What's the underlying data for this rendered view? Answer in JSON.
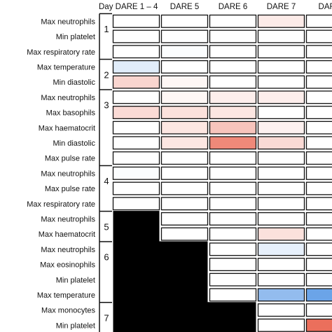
{
  "chart_data": {
    "type": "heatmap",
    "columns": [
      "Day DARE 1 – 4",
      "DARE 5",
      "DARE 6",
      "DARE 7",
      "DARE"
    ],
    "rows": [
      {
        "label": "Max neutrophils",
        "group": "1",
        "values": [
          0.0,
          0.0,
          0.0,
          0.12,
          null
        ]
      },
      {
        "label": "Min platelet",
        "group": "1",
        "values": [
          0.0,
          0.0,
          0.0,
          0.0,
          null
        ]
      },
      {
        "label": "Max respiratory rate",
        "group": "1",
        "values": [
          0.0,
          -0.02,
          0.0,
          0.0,
          null
        ]
      },
      {
        "label": "Max temperature",
        "group": "2",
        "values": [
          -0.15,
          0.0,
          0.0,
          0.0,
          null
        ]
      },
      {
        "label": "Min diastolic",
        "group": "2",
        "values": [
          0.25,
          0.05,
          0.0,
          0.0,
          null
        ]
      },
      {
        "label": "Max neutrophils",
        "group": "3",
        "values": [
          0.0,
          0.05,
          0.1,
          0.1,
          null
        ]
      },
      {
        "label": "Max basophils",
        "group": "3",
        "values": [
          0.22,
          0.18,
          0.15,
          0.0,
          null
        ]
      },
      {
        "label": "Max haematocrit",
        "group": "3",
        "values": [
          0.0,
          0.15,
          0.35,
          0.08,
          null
        ]
      },
      {
        "label": "Min diastolic",
        "group": "3",
        "values": [
          0.0,
          0.15,
          0.7,
          0.22,
          null
        ]
      },
      {
        "label": "Max pulse rate",
        "group": "3",
        "values": [
          0.0,
          0.0,
          0.0,
          0.0,
          null
        ]
      },
      {
        "label": "Max neutrophils",
        "group": "4",
        "values": [
          -0.02,
          0.0,
          0.0,
          0.0,
          null
        ]
      },
      {
        "label": "Max pulse rate",
        "group": "4",
        "values": [
          0.0,
          0.0,
          0.0,
          0.0,
          null
        ]
      },
      {
        "label": "Max respiratory rate",
        "group": "4",
        "values": [
          0.0,
          0.0,
          0.0,
          0.0,
          null
        ]
      },
      {
        "label": "Max neutrophils",
        "group": "5",
        "values": [
          "na",
          0.0,
          0.0,
          0.0,
          null
        ]
      },
      {
        "label": "Max haematocrit",
        "group": "5",
        "values": [
          "na",
          0.0,
          0.0,
          0.18,
          null
        ]
      },
      {
        "label": "Max neutrophils",
        "group": "6",
        "values": [
          "na",
          "na",
          0.0,
          -0.12,
          null
        ]
      },
      {
        "label": "Max eosinophils",
        "group": "6",
        "values": [
          "na",
          "na",
          0.0,
          0.0,
          null
        ]
      },
      {
        "label": "Min platelet",
        "group": "6",
        "values": [
          "na",
          "na",
          0.0,
          0.0,
          null
        ]
      },
      {
        "label": "Max temperature",
        "group": "6",
        "values": [
          "na",
          "na",
          0.0,
          -0.55,
          -0.75
        ]
      },
      {
        "label": "Max monocytes",
        "group": "7",
        "values": [
          "na",
          "na",
          "na",
          0.0,
          null
        ]
      },
      {
        "label": "Min platelet",
        "group": "7",
        "values": [
          "na",
          "na",
          "na",
          0.0,
          0.85
        ]
      }
    ],
    "groups": [
      "1",
      "2",
      "3",
      "4",
      "5",
      "6",
      "7"
    ],
    "color_scale": {
      "negative": "#3a86e0",
      "neutral": "#ffffff",
      "positive": "#e8563f",
      "not_applicable": "#000000"
    },
    "grid": true
  }
}
